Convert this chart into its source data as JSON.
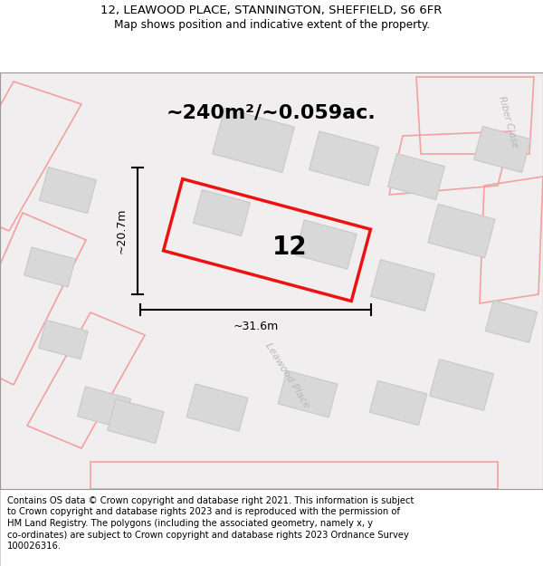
{
  "title_line1": "12, LEAWOOD PLACE, STANNINGTON, SHEFFIELD, S6 6FR",
  "title_line2": "Map shows position and indicative extent of the property.",
  "footer_lines": [
    "Contains OS data © Crown copyright and database right 2021. This information is subject",
    "to Crown copyright and database rights 2023 and is reproduced with the permission of",
    "HM Land Registry. The polygons (including the associated geometry, namely x, y",
    "co-ordinates) are subject to Crown copyright and database rights 2023 Ordnance Survey",
    "100026316."
  ],
  "area_label": "~240m²/~0.059ac.",
  "plot_number": "12",
  "width_label": "~31.6m",
  "height_label": "~20.7m",
  "road_label": "Leawood Place",
  "road_label2": "Riber Close",
  "map_bg": "#f0eeee",
  "plot_color": "#ee1111",
  "building_fill": "#d8d8d8",
  "building_outline": "#c8c8c8",
  "pink_outline": "#f4a0a0",
  "title_fontsize": 9.5,
  "footer_fontsize": 7.2
}
